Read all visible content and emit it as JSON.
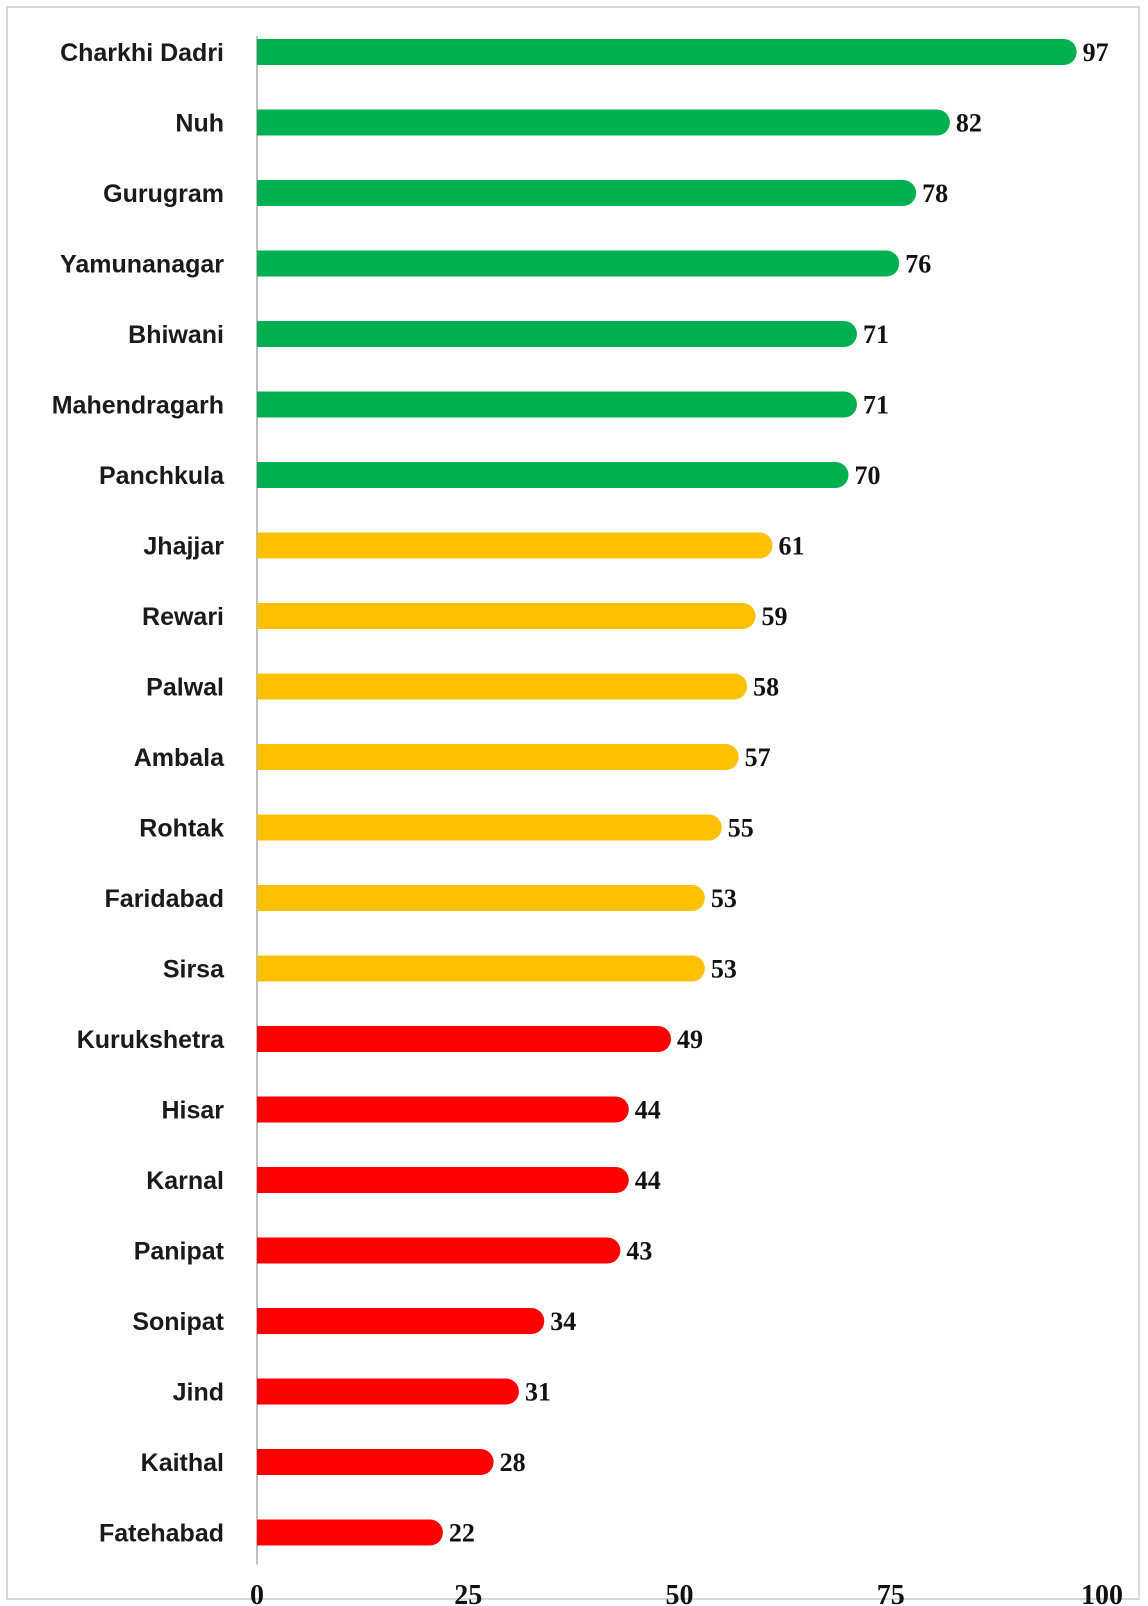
{
  "colors": {
    "high": "#00b050",
    "medium": "#ffc000",
    "low": "#ff0000",
    "axis": "#bfbfbf"
  },
  "chart_data": {
    "type": "bar",
    "orientation": "horizontal",
    "categories": [
      "Charkhi Dadri",
      "Nuh",
      "Gurugram",
      "Yamunanagar",
      "Bhiwani",
      "Mahendragarh",
      "Panchkula",
      "Jhajjar",
      "Rewari",
      "Palwal",
      "Ambala",
      "Rohtak",
      "Faridabad",
      "Sirsa",
      "Kurukshetra",
      "Hisar",
      "Karnal",
      "Panipat",
      "Sonipat",
      "Jind",
      "Kaithal",
      "Fatehabad"
    ],
    "values": [
      97,
      82,
      78,
      76,
      71,
      71,
      70,
      61,
      59,
      58,
      57,
      55,
      53,
      53,
      49,
      44,
      44,
      43,
      34,
      31,
      28,
      22
    ],
    "color_groups": [
      "high",
      "high",
      "high",
      "high",
      "high",
      "high",
      "high",
      "medium",
      "medium",
      "medium",
      "medium",
      "medium",
      "medium",
      "medium",
      "low",
      "low",
      "low",
      "low",
      "low",
      "low",
      "low",
      "low"
    ],
    "xlim": [
      0,
      100
    ],
    "xticks": [
      0,
      25,
      50,
      75,
      100
    ],
    "title": "",
    "xlabel": "",
    "ylabel": "",
    "grid": false,
    "data_labels": true
  }
}
